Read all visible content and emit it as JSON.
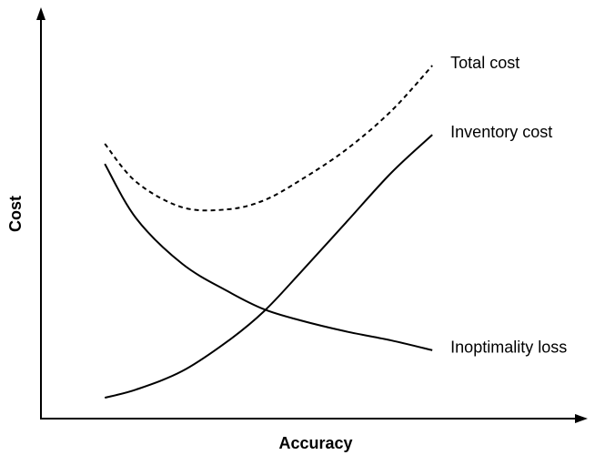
{
  "chart_data": {
    "type": "line",
    "xlabel": "Accuracy",
    "ylabel": "Cost",
    "xlim": [
      0,
      100
    ],
    "ylim": [
      0,
      100
    ],
    "x": [
      11.8,
      17.6,
      26.1,
      34.5,
      41.2,
      47.9,
      56.3,
      64.7,
      72.3
    ],
    "series": [
      {
        "name": "Total cost",
        "color": "#000000",
        "style": "dashed",
        "values": [
          67.1,
          57.8,
          51.6,
          51.1,
          53.3,
          58.2,
          65.6,
          75.1,
          86.2
        ]
      },
      {
        "name": "Inventory cost",
        "color": "#000000",
        "style": "solid",
        "values": [
          5.1,
          7.1,
          11.6,
          18.9,
          26.2,
          35.6,
          47.8,
          60.0,
          69.3
        ]
      },
      {
        "name": "Inoptimality loss",
        "color": "#000000",
        "style": "solid",
        "values": [
          62.2,
          48.9,
          37.8,
          31.1,
          26.7,
          24.0,
          21.3,
          19.1,
          16.7
        ]
      }
    ]
  }
}
